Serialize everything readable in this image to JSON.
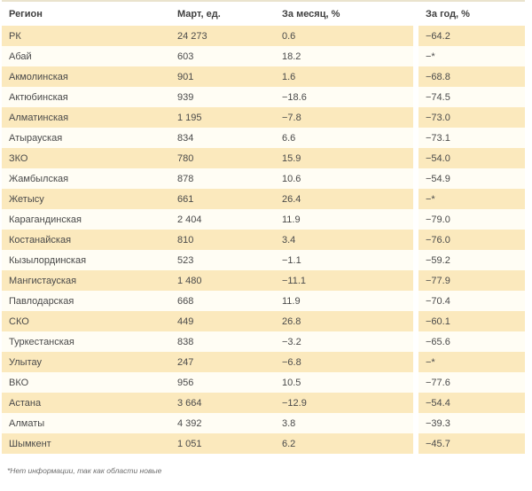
{
  "table": {
    "columns": [
      "Регион",
      "Март, ед.",
      "За месяц, %",
      "За год, %"
    ],
    "rows": [
      {
        "region": "РК",
        "march": "24 273",
        "month": "0.6",
        "year": "−64.2"
      },
      {
        "region": "Абай",
        "march": "603",
        "month": "18.2",
        "year": "−*"
      },
      {
        "region": "Акмолинская",
        "march": "901",
        "month": "1.6",
        "year": "−68.8"
      },
      {
        "region": "Актюбинская",
        "march": "939",
        "month": "−18.6",
        "year": "−74.5"
      },
      {
        "region": "Алматинская",
        "march": "1 195",
        "month": "−7.8",
        "year": "−73.0"
      },
      {
        "region": "Атырауская",
        "march": "834",
        "month": "6.6",
        "year": "−73.1"
      },
      {
        "region": "ЗКО",
        "march": "780",
        "month": "15.9",
        "year": "−54.0"
      },
      {
        "region": "Жамбылская",
        "march": "878",
        "month": "10.6",
        "year": "−54.9"
      },
      {
        "region": "Жетысу",
        "march": "661",
        "month": "26.4",
        "year": "−*"
      },
      {
        "region": "Карагандинская",
        "march": "2 404",
        "month": "11.9",
        "year": "−79.0"
      },
      {
        "region": "Костанайская",
        "march": "810",
        "month": "3.4",
        "year": "−76.0"
      },
      {
        "region": "Кызылординская",
        "march": "523",
        "month": "−1.1",
        "year": "−59.2"
      },
      {
        "region": "Мангистауская",
        "march": "1 480",
        "month": "−11.1",
        "year": "−77.9"
      },
      {
        "region": "Павлодарская",
        "march": "668",
        "month": "11.9",
        "year": "−70.4"
      },
      {
        "region": "СКО",
        "march": "449",
        "month": "26.8",
        "year": "−60.1"
      },
      {
        "region": "Туркестанская",
        "march": "838",
        "month": "−3.2",
        "year": "−65.6"
      },
      {
        "region": "Улытау",
        "march": "247",
        "month": "−6.8",
        "year": "−*"
      },
      {
        "region": "ВКО",
        "march": "956",
        "month": "10.5",
        "year": "−77.6"
      },
      {
        "region": "Астана",
        "march": "3 664",
        "month": "−12.9",
        "year": "−54.4"
      },
      {
        "region": "Алматы",
        "march": "4 392",
        "month": "3.8",
        "year": "−39.3"
      },
      {
        "region": "Шымкент",
        "march": "1 051",
        "month": "6.2",
        "year": "−45.7"
      }
    ]
  },
  "footnote": "*Нет информации, так как области новые",
  "colors": {
    "row_odd": "#fbe9bd",
    "row_even": "#fffdf4",
    "top_border": "#eae3cd",
    "header_text": "#3f3f3f",
    "body_text": "#4a4a4a",
    "footnote_text": "#6f6f6f"
  },
  "chart_data": {
    "type": "table",
    "title": "",
    "columns": [
      "Регион",
      "Март, ед.",
      "За месяц, %",
      "За год, %"
    ],
    "rows": [
      [
        "РК",
        24273,
        0.6,
        -64.2
      ],
      [
        "Абай",
        603,
        18.2,
        null
      ],
      [
        "Акмолинская",
        901,
        1.6,
        -68.8
      ],
      [
        "Актюбинская",
        939,
        -18.6,
        -74.5
      ],
      [
        "Алматинская",
        1195,
        -7.8,
        -73.0
      ],
      [
        "Атырауская",
        834,
        6.6,
        -73.1
      ],
      [
        "ЗКО",
        780,
        15.9,
        -54.0
      ],
      [
        "Жамбылская",
        878,
        10.6,
        -54.9
      ],
      [
        "Жетысу",
        661,
        26.4,
        null
      ],
      [
        "Карагандинская",
        2404,
        11.9,
        -79.0
      ],
      [
        "Костанайская",
        810,
        3.4,
        -76.0
      ],
      [
        "Кызылординская",
        523,
        -1.1,
        -59.2
      ],
      [
        "Мангистауская",
        1480,
        -11.1,
        -77.9
      ],
      [
        "Павлодарская",
        668,
        11.9,
        -70.4
      ],
      [
        "СКО",
        449,
        26.8,
        -60.1
      ],
      [
        "Туркестанская",
        838,
        -3.2,
        -65.6
      ],
      [
        "Улытау",
        247,
        -6.8,
        null
      ],
      [
        "ВКО",
        956,
        10.5,
        -77.6
      ],
      [
        "Астана",
        3664,
        -12.9,
        -54.4
      ],
      [
        "Алматы",
        4392,
        3.8,
        -39.3
      ],
      [
        "Шымкент",
        1051,
        6.2,
        -45.7
      ]
    ],
    "missing_value_marker": "−*",
    "footnote": "*Нет информации, так как области новые"
  }
}
